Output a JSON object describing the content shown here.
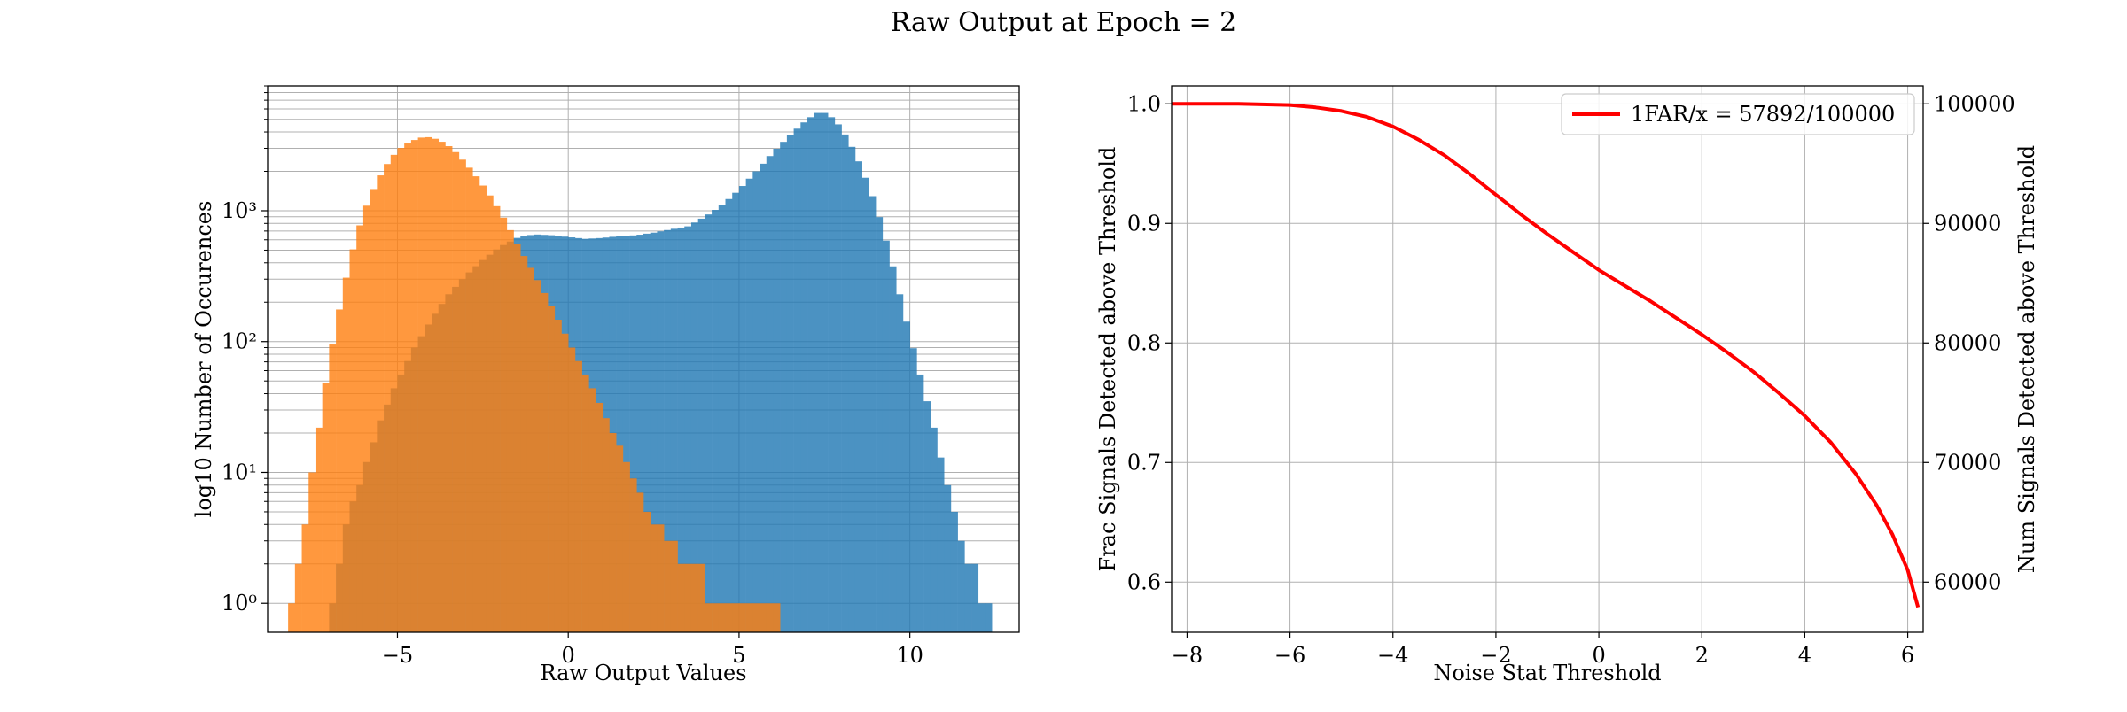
{
  "figure": {
    "title": "Raw Output at Epoch = 2"
  },
  "chart_data": [
    {
      "type": "histogram",
      "yscale": "log",
      "xlabel": "Raw Output Values",
      "ylabel": "log10 Number of Occurences",
      "xlim": [
        -8.8,
        13.2
      ],
      "ylim": [
        0.6,
        9000
      ],
      "xticks": [
        -5,
        0,
        5,
        10
      ],
      "xtick_labels": [
        "−5",
        "0",
        "5",
        "10"
      ],
      "yticks": [
        1,
        10,
        100,
        1000
      ],
      "ytick_labels": [
        "10⁰",
        "10¹",
        "10²",
        "10³"
      ],
      "grid": true,
      "bin_width": 0.2,
      "series": [
        {
          "color": "#1f77b4",
          "profile": [
            [
              -7.0,
              1
            ],
            [
              -6.5,
              4
            ],
            [
              -6.0,
              10
            ],
            [
              -5.5,
              25
            ],
            [
              -5.0,
              50
            ],
            [
              -4.5,
              90
            ],
            [
              -4.0,
              150
            ],
            [
              -3.5,
              230
            ],
            [
              -3.0,
              320
            ],
            [
              -2.5,
              420
            ],
            [
              -2.0,
              530
            ],
            [
              -1.5,
              620
            ],
            [
              -1.0,
              660
            ],
            [
              -0.5,
              650
            ],
            [
              0.0,
              630
            ],
            [
              0.5,
              610
            ],
            [
              1.0,
              620
            ],
            [
              1.5,
              640
            ],
            [
              2.0,
              650
            ],
            [
              2.5,
              680
            ],
            [
              3.0,
              720
            ],
            [
              3.5,
              760
            ],
            [
              4.0,
              900
            ],
            [
              4.5,
              1100
            ],
            [
              5.0,
              1450
            ],
            [
              5.5,
              2000
            ],
            [
              6.0,
              2800
            ],
            [
              6.5,
              3800
            ],
            [
              7.0,
              5000
            ],
            [
              7.4,
              5800
            ],
            [
              7.8,
              5000
            ],
            [
              8.2,
              3500
            ],
            [
              8.6,
              2100
            ],
            [
              9.0,
              1100
            ],
            [
              9.4,
              480
            ],
            [
              9.8,
              180
            ],
            [
              10.2,
              70
            ],
            [
              10.6,
              28
            ],
            [
              11.0,
              10
            ],
            [
              11.4,
              4
            ],
            [
              11.8,
              2
            ],
            [
              12.2,
              1
            ]
          ]
        },
        {
          "color": "#ff7f0e",
          "profile": [
            [
              -8.2,
              1
            ],
            [
              -7.8,
              3
            ],
            [
              -7.4,
              15
            ],
            [
              -7.0,
              70
            ],
            [
              -6.6,
              240
            ],
            [
              -6.2,
              650
            ],
            [
              -5.8,
              1300
            ],
            [
              -5.4,
              2100
            ],
            [
              -5.0,
              2900
            ],
            [
              -4.6,
              3400
            ],
            [
              -4.2,
              3700
            ],
            [
              -3.8,
              3500
            ],
            [
              -3.4,
              3000
            ],
            [
              -3.0,
              2300
            ],
            [
              -2.6,
              1700
            ],
            [
              -2.2,
              1200
            ],
            [
              -1.8,
              800
            ],
            [
              -1.4,
              500
            ],
            [
              -1.0,
              330
            ],
            [
              -0.6,
              210
            ],
            [
              -0.2,
              130
            ],
            [
              0.2,
              80
            ],
            [
              0.6,
              50
            ],
            [
              1.0,
              30
            ],
            [
              1.4,
              18
            ],
            [
              1.8,
              11
            ],
            [
              2.2,
              6
            ],
            [
              2.6,
              4
            ],
            [
              3.0,
              3
            ],
            [
              3.5,
              2
            ],
            [
              4.0,
              1.5
            ],
            [
              4.5,
              1
            ],
            [
              5.2,
              1
            ],
            [
              6.0,
              1
            ]
          ]
        }
      ]
    },
    {
      "type": "line",
      "xlabel": "Noise Stat Threshold",
      "ylabel": "Frac Signals Detected above Threshold",
      "y2label": "Num Signals Detected above Threshold",
      "xlim": [
        -8.3,
        6.3
      ],
      "ylim": [
        0.558,
        1.015
      ],
      "y2lim": [
        55800,
        101500
      ],
      "xticks": [
        -8,
        -6,
        -4,
        -2,
        0,
        2,
        4,
        6
      ],
      "xtick_labels": [
        "−8",
        "−6",
        "−4",
        "−2",
        "0",
        "2",
        "4",
        "6"
      ],
      "yticks": [
        0.6,
        0.7,
        0.8,
        0.9,
        1.0
      ],
      "ytick_labels": [
        "0.6",
        "0.7",
        "0.8",
        "0.9",
        "1.0"
      ],
      "y2ticks": [
        60000,
        70000,
        80000,
        90000,
        100000
      ],
      "y2tick_labels": [
        "60000",
        "70000",
        "80000",
        "90000",
        "100000"
      ],
      "grid": true,
      "legend_position": "top-right",
      "series": [
        {
          "name": "1FAR/x = 57892/100000",
          "color": "#ff0000",
          "x": [
            -8.3,
            -7.0,
            -6.0,
            -5.5,
            -5.0,
            -4.5,
            -4.0,
            -3.5,
            -3.0,
            -2.5,
            -2.0,
            -1.5,
            -1.0,
            -0.5,
            0.0,
            0.5,
            1.0,
            1.5,
            2.0,
            2.5,
            3.0,
            3.5,
            4.0,
            4.5,
            5.0,
            5.4,
            5.7,
            6.0,
            6.2
          ],
          "y": [
            1.0,
            1.0,
            0.999,
            0.997,
            0.994,
            0.989,
            0.981,
            0.97,
            0.957,
            0.941,
            0.924,
            0.907,
            0.891,
            0.876,
            0.861,
            0.848,
            0.835,
            0.821,
            0.807,
            0.792,
            0.776,
            0.758,
            0.739,
            0.717,
            0.69,
            0.664,
            0.64,
            0.61,
            0.579
          ]
        }
      ]
    }
  ]
}
